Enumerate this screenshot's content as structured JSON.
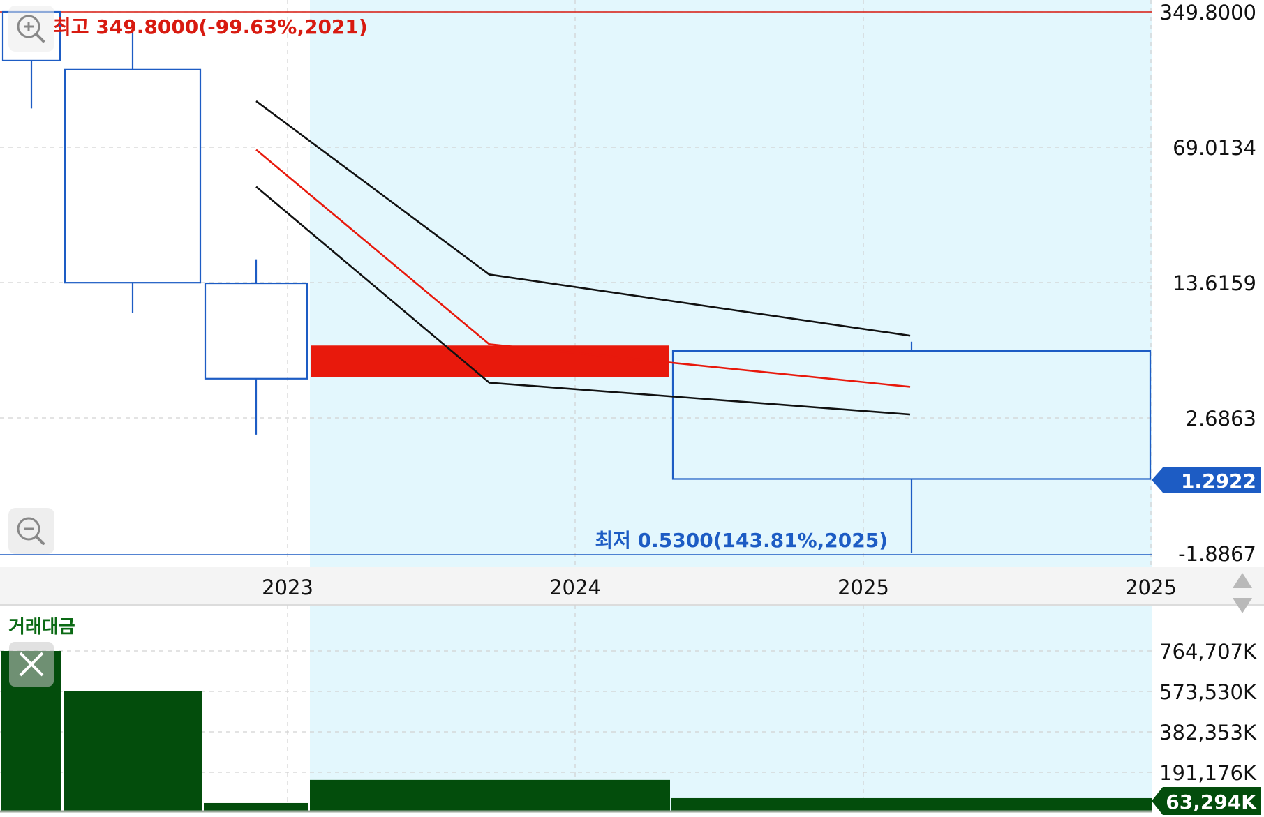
{
  "chart_data": {
    "type": "candlestick",
    "scale": "log",
    "price_axis_ticks": [
      "349.8000",
      "69.0134",
      "13.6159",
      "2.6863",
      "-1.8867"
    ],
    "current_price_label": "1.2922",
    "x_axis_ticks": [
      "2023",
      "2024",
      "2025",
      "2025"
    ],
    "high_annotation": "최고 349.8000(-99.63%,2021)",
    "low_annotation": "최저 0.5300(143.81%,2025)",
    "candles": [
      {
        "open": 195,
        "close": 350,
        "high": 350,
        "low": 110,
        "color": "blue",
        "style": "hollow"
      },
      {
        "open": 175,
        "close": 13.6,
        "high": 300,
        "low": 9.5,
        "color": "blue",
        "style": "hollow"
      },
      {
        "open": 13.5,
        "close": 4.3,
        "high": 18,
        "low": 2.2,
        "color": "blue",
        "style": "hollow"
      },
      {
        "open": 4.4,
        "close": 6.4,
        "high": 6.4,
        "low": 4.4,
        "color": "red",
        "style": "filled"
      },
      {
        "open": 6.0,
        "close": 1.2922,
        "high": 6.7,
        "low": 0.53,
        "color": "blue",
        "style": "hollow"
      }
    ],
    "bollinger": {
      "upper": [
        120,
        15,
        7.2
      ],
      "middle": [
        67,
        6.5,
        3.9
      ],
      "lower": [
        43,
        4.1,
        2.8
      ]
    },
    "highlight_band": {
      "from_candle": 3,
      "to_candle": 4,
      "color": "#e3f7fd"
    },
    "volume": {
      "title": "거래대금",
      "ticks": [
        "764,707K",
        "573,530K",
        "382,353K",
        "191,176K"
      ],
      "current_label": "63,294K",
      "values": [
        764707,
        573530,
        40000,
        150000,
        63294
      ],
      "color": "#034d0c"
    },
    "colors": {
      "up": "#e8190c",
      "down": "#1d5cc4",
      "high_label": "#d81a10",
      "low_label": "#1d5cc4",
      "volume": "#034d0c",
      "volume_title": "#0b6a14",
      "band": "#e3f7fd"
    }
  }
}
